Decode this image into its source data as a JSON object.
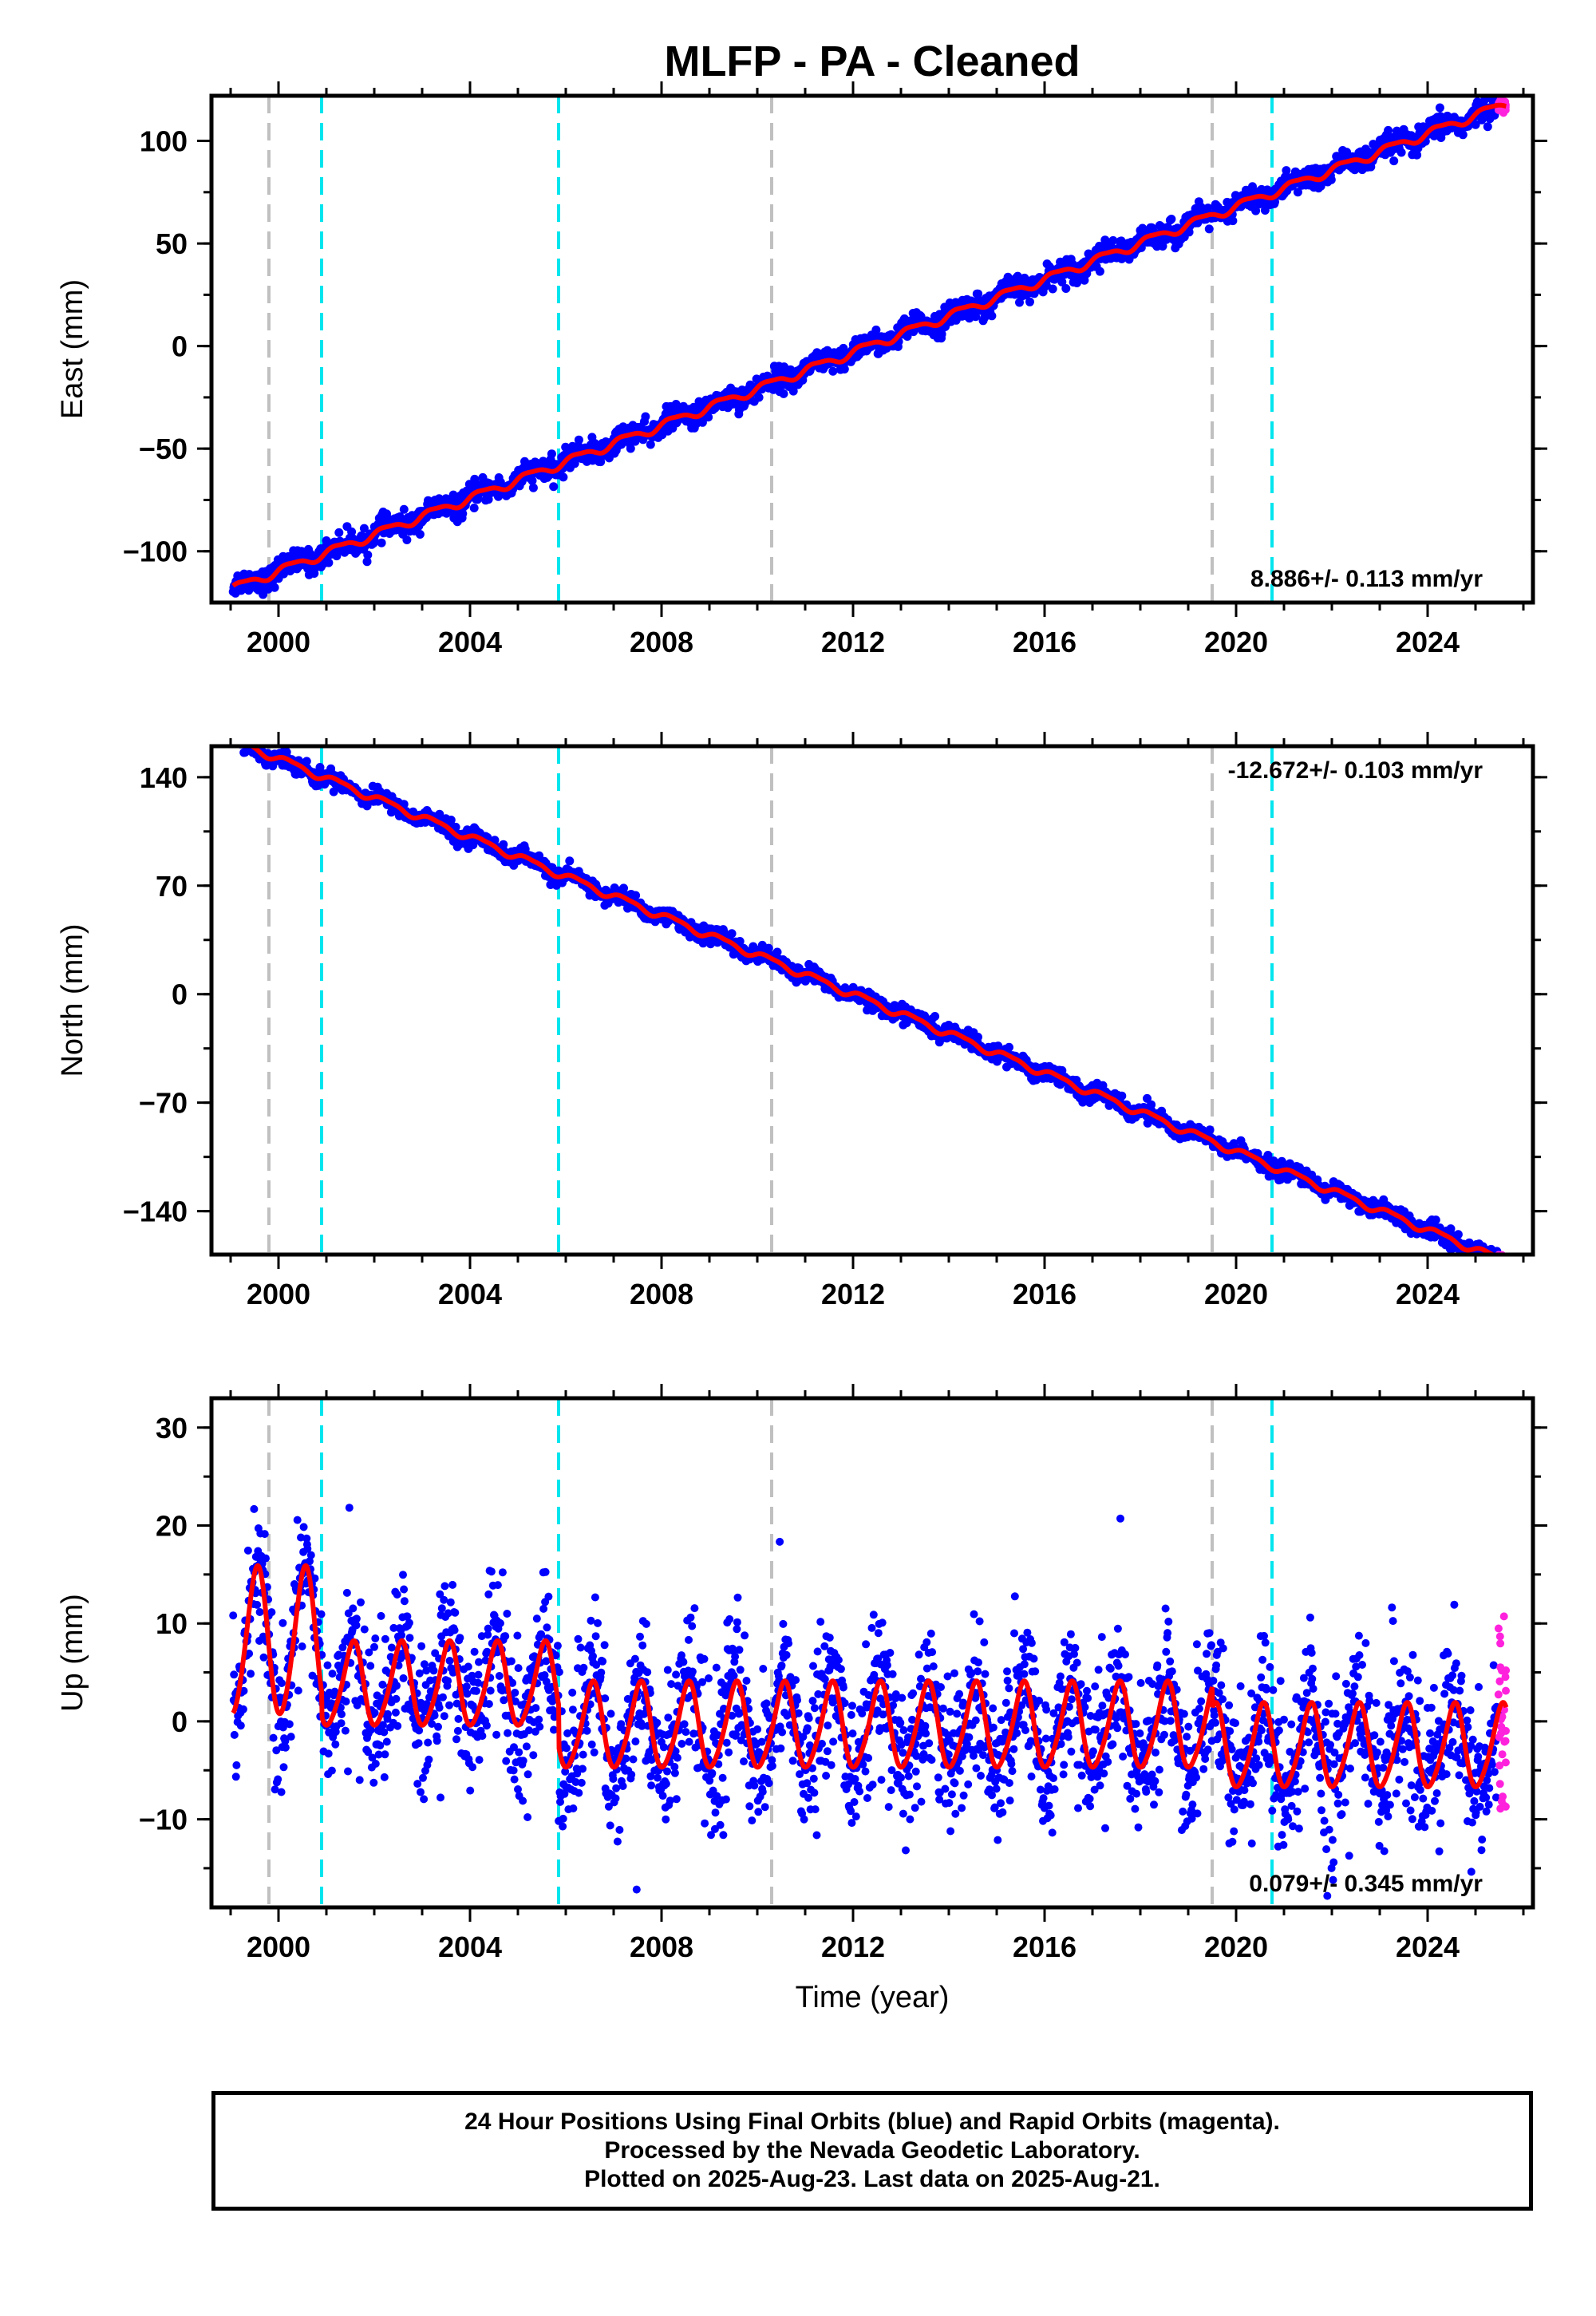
{
  "figure": {
    "title": "MLFP  - PA - Cleaned",
    "xlabel": "Time (year)",
    "footer": [
      "24 Hour Positions Using Final Orbits (blue) and Rapid Orbits (magenta).",
      "Processed by the Nevada Geodetic Laboratory.",
      "Plotted on 2025-Aug-23. Last data on 2025-Aug-21."
    ]
  },
  "colors": {
    "final": "#0000ff",
    "rapid": "#ff22dd",
    "model": "#ff0000",
    "equipment_change": "#c0c0c0",
    "antenna_change": "#00e5ee"
  },
  "chart_data": [
    {
      "type": "scatter",
      "component": "east",
      "ylabel": "East (mm)",
      "xlim": [
        1998.6,
        2026.2
      ],
      "ylim": [
        -125,
        122
      ],
      "yticks": [
        -100,
        -50,
        0,
        50,
        100
      ],
      "ytick_labels": [
        "−100",
        "−50",
        "0",
        "50",
        "100"
      ],
      "xticks": [
        2000,
        2004,
        2008,
        2012,
        2016,
        2020,
        2024
      ],
      "xtick_labels": [
        "2000",
        "2004",
        "2008",
        "2012",
        "2016",
        "2020",
        "2024"
      ],
      "rate_label": "8.886+/- 0.113 mm/yr",
      "rate_position": "bottom-right",
      "model": {
        "t0": 2012.0,
        "value_at_t0": -3.0,
        "rate": 8.886,
        "annual_amp": 2.0,
        "semiannual_amp": 0.6
      },
      "series": [
        {
          "name": "Final Orbits",
          "x_range": [
            1999.05,
            2025.48
          ],
          "scatter_mm": 2.8
        },
        {
          "name": "Rapid Orbits",
          "x_range": [
            2025.48,
            2025.64
          ]
        }
      ]
    },
    {
      "type": "scatter",
      "component": "north",
      "ylabel": "North (mm)",
      "xlim": [
        1998.6,
        2026.2
      ],
      "ylim": [
        -168,
        160
      ],
      "yticks": [
        -140,
        -70,
        0,
        70,
        140
      ],
      "ytick_labels": [
        "−140",
        "−70",
        "0",
        "70",
        "140"
      ],
      "xticks": [
        2000,
        2004,
        2008,
        2012,
        2016,
        2020,
        2024
      ],
      "xtick_labels": [
        "2000",
        "2004",
        "2008",
        "2012",
        "2016",
        "2020",
        "2024"
      ],
      "rate_label": "-12.672+/- 0.103 mm/yr",
      "rate_position": "top-right",
      "model": {
        "t0": 2012.0,
        "value_at_t0": 0.0,
        "rate": -12.672,
        "annual_amp": 2.2,
        "semiannual_amp": 0.7
      },
      "series": [
        {
          "name": "Final Orbits",
          "x_range": [
            1999.05,
            2025.48
          ],
          "scatter_mm": 2.6
        },
        {
          "name": "Rapid Orbits",
          "x_range": [
            2025.48,
            2025.64
          ]
        }
      ]
    },
    {
      "type": "scatter",
      "component": "up",
      "ylabel": "Up (mm)",
      "xlim": [
        1998.6,
        2026.2
      ],
      "ylim": [
        -19,
        33
      ],
      "yticks": [
        -10,
        0,
        10,
        20,
        30
      ],
      "ytick_labels": [
        "−10",
        "0",
        "10",
        "20",
        "30"
      ],
      "xticks": [
        2000,
        2004,
        2008,
        2012,
        2016,
        2020,
        2024
      ],
      "xtick_labels": [
        "2000",
        "2004",
        "2008",
        "2012",
        "2016",
        "2020",
        "2024"
      ],
      "rate_label": "0.079+/- 0.345 mm/yr",
      "rate_position": "bottom-right",
      "annual_model_offsets": [
        {
          "from": 1999.0,
          "to": 2000.9,
          "offset": 8.0,
          "amp": 7.5
        },
        {
          "from": 2000.9,
          "to": 2005.85,
          "offset": 3.6,
          "amp": 4.2
        },
        {
          "from": 2005.85,
          "to": 2019.5,
          "offset": -0.6,
          "amp": 4.3
        },
        {
          "from": 2019.5,
          "to": 2025.7,
          "offset": -2.7,
          "amp": 4.2
        }
      ],
      "series": [
        {
          "name": "Final Orbits",
          "x_range": [
            1999.05,
            2025.48
          ],
          "scatter_mm": 3.6
        },
        {
          "name": "Rapid Orbits",
          "x_range": [
            2025.48,
            2025.64
          ],
          "y_range": [
            -10.5,
            11
          ]
        }
      ]
    }
  ],
  "events": {
    "equipment_change": [
      1999.8,
      2010.3,
      2019.5
    ],
    "antenna_change": [
      2000.9,
      2005.85,
      2020.75
    ]
  }
}
